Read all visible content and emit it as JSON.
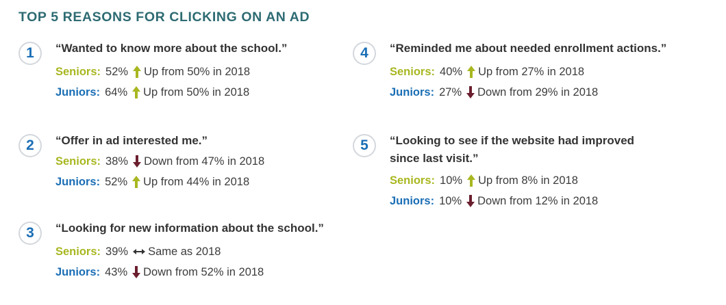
{
  "title": "TOP 5 REASONS FOR CLICKING ON AN AD",
  "colors": {
    "title": "#2e6b73",
    "badge_number": "#1a6eb5",
    "seniors_label": "#a8b720",
    "juniors_label": "#1a6eb5",
    "arrow_up": "#a8b720",
    "arrow_down": "#6b1f2e",
    "arrow_same": "#333333"
  },
  "labels": {
    "seniors": "Seniors:",
    "juniors": "Juniors:"
  },
  "chart_data": {
    "type": "table",
    "title": "TOP 5 REASONS FOR CLICKING ON AN AD",
    "reasons": [
      {
        "number": "1",
        "quote_lines": [
          "“Wanted to know more about the school.”"
        ],
        "seniors": {
          "value": "52%",
          "trend": "up",
          "text": "Up from 50% in 2018"
        },
        "juniors": {
          "value": "64%",
          "trend": "up",
          "text": "Up from 50% in 2018"
        }
      },
      {
        "number": "2",
        "quote_lines": [
          "“Offer in ad interested me.”"
        ],
        "seniors": {
          "value": "38%",
          "trend": "down",
          "text": "Down from 47% in 2018"
        },
        "juniors": {
          "value": "52%",
          "trend": "up",
          "text": "Up from 44% in 2018"
        }
      },
      {
        "number": "3",
        "quote_lines": [
          "“Looking for new information about the school.”"
        ],
        "seniors": {
          "value": "39%",
          "trend": "same",
          "text": "Same as 2018"
        },
        "juniors": {
          "value": "43%",
          "trend": "down",
          "text": "Down from 52% in 2018"
        }
      },
      {
        "number": "4",
        "quote_lines": [
          "“Reminded me about needed enrollment actions.”"
        ],
        "seniors": {
          "value": "40%",
          "trend": "up",
          "text": "Up from 27% in 2018"
        },
        "juniors": {
          "value": "27%",
          "trend": "down",
          "text": "Down from 29% in 2018"
        }
      },
      {
        "number": "5",
        "quote_lines": [
          "“Looking to see if the website had improved",
          "since last visit.”"
        ],
        "seniors": {
          "value": "10%",
          "trend": "up",
          "text": "Up from 8% in 2018"
        },
        "juniors": {
          "value": "10%",
          "trend": "down",
          "text": "Down from 12% in 2018"
        }
      }
    ]
  }
}
